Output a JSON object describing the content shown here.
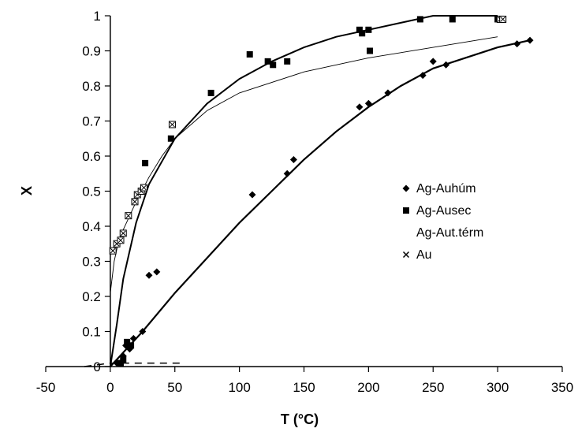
{
  "chart_data": {
    "type": "scatter",
    "title": "",
    "xlabel": "T (°C)",
    "ylabel": "X",
    "xlim": [
      -50,
      350
    ],
    "ylim": [
      0,
      1
    ],
    "x_ticks": [
      "-50",
      "0",
      "50",
      "100",
      "150",
      "200",
      "250",
      "300",
      "350"
    ],
    "y_ticks": [
      "0",
      "0.1",
      "0.2",
      "0.3",
      "0.4",
      "0.5",
      "0.6",
      "0.7",
      "0.8",
      "0.9",
      "1"
    ],
    "grid": false,
    "legend_position": "right",
    "series": [
      {
        "name": "Ag-Auhúm",
        "marker": "diamond",
        "points": [
          [
            5,
            0.01
          ],
          [
            10,
            0.03
          ],
          [
            12,
            0.06
          ],
          [
            15,
            0.05
          ],
          [
            18,
            0.08
          ],
          [
            25,
            0.1
          ],
          [
            30,
            0.26
          ],
          [
            36,
            0.27
          ],
          [
            110,
            0.49
          ],
          [
            137,
            0.55
          ],
          [
            142,
            0.59
          ],
          [
            193,
            0.74
          ],
          [
            200,
            0.75
          ],
          [
            215,
            0.78
          ],
          [
            242,
            0.83
          ],
          [
            250,
            0.87
          ],
          [
            260,
            0.86
          ],
          [
            315,
            0.92
          ],
          [
            325,
            0.93
          ]
        ],
        "fit": [
          [
            0,
            0
          ],
          [
            25,
            0.1
          ],
          [
            50,
            0.21
          ],
          [
            75,
            0.31
          ],
          [
            100,
            0.41
          ],
          [
            125,
            0.5
          ],
          [
            150,
            0.59
          ],
          [
            175,
            0.67
          ],
          [
            200,
            0.74
          ],
          [
            225,
            0.8
          ],
          [
            250,
            0.85
          ],
          [
            275,
            0.88
          ],
          [
            300,
            0.91
          ],
          [
            325,
            0.93
          ]
        ]
      },
      {
        "name": "Ag-Ausec",
        "marker": "square",
        "points": [
          [
            8,
            0.01
          ],
          [
            10,
            0.02
          ],
          [
            13,
            0.07
          ],
          [
            16,
            0.06
          ],
          [
            27,
            0.58
          ],
          [
            47,
            0.65
          ],
          [
            78,
            0.78
          ],
          [
            108,
            0.89
          ],
          [
            122,
            0.87
          ],
          [
            126,
            0.86
          ],
          [
            137,
            0.87
          ],
          [
            193,
            0.96
          ],
          [
            195,
            0.95
          ],
          [
            200,
            0.96
          ],
          [
            201,
            0.9
          ],
          [
            240,
            0.99
          ],
          [
            265,
            0.99
          ],
          [
            300,
            0.99
          ]
        ],
        "fit": [
          [
            0,
            0
          ],
          [
            5,
            0.12
          ],
          [
            10,
            0.25
          ],
          [
            20,
            0.41
          ],
          [
            30,
            0.52
          ],
          [
            50,
            0.65
          ],
          [
            75,
            0.75
          ],
          [
            100,
            0.82
          ],
          [
            125,
            0.87
          ],
          [
            150,
            0.91
          ],
          [
            175,
            0.94
          ],
          [
            200,
            0.96
          ],
          [
            225,
            0.98
          ],
          [
            250,
            1.0
          ],
          [
            300,
            1.0
          ]
        ]
      },
      {
        "name": "Ag-Aut.térm",
        "marker": "none",
        "points": [
          [
            -20,
            0
          ],
          [
            0,
            0.01
          ],
          [
            20,
            0.01
          ],
          [
            40,
            0.01
          ],
          [
            55,
            0.01
          ]
        ]
      },
      {
        "name": "Au",
        "marker": "boxed-x",
        "points": [
          [
            2,
            0.33
          ],
          [
            5,
            0.35
          ],
          [
            8,
            0.36
          ],
          [
            10,
            0.38
          ],
          [
            14,
            0.43
          ],
          [
            19,
            0.47
          ],
          [
            21,
            0.49
          ],
          [
            24,
            0.5
          ],
          [
            26,
            0.51
          ],
          [
            48,
            0.69
          ],
          [
            302,
            0.99
          ],
          [
            304,
            0.99
          ]
        ],
        "fit": [
          [
            0,
            0.21
          ],
          [
            3,
            0.3
          ],
          [
            6,
            0.35
          ],
          [
            10,
            0.39
          ],
          [
            20,
            0.47
          ],
          [
            30,
            0.54
          ],
          [
            40,
            0.6
          ],
          [
            50,
            0.65
          ],
          [
            75,
            0.73
          ],
          [
            100,
            0.78
          ],
          [
            150,
            0.84
          ],
          [
            200,
            0.88
          ],
          [
            250,
            0.91
          ],
          [
            300,
            0.94
          ]
        ]
      }
    ]
  }
}
